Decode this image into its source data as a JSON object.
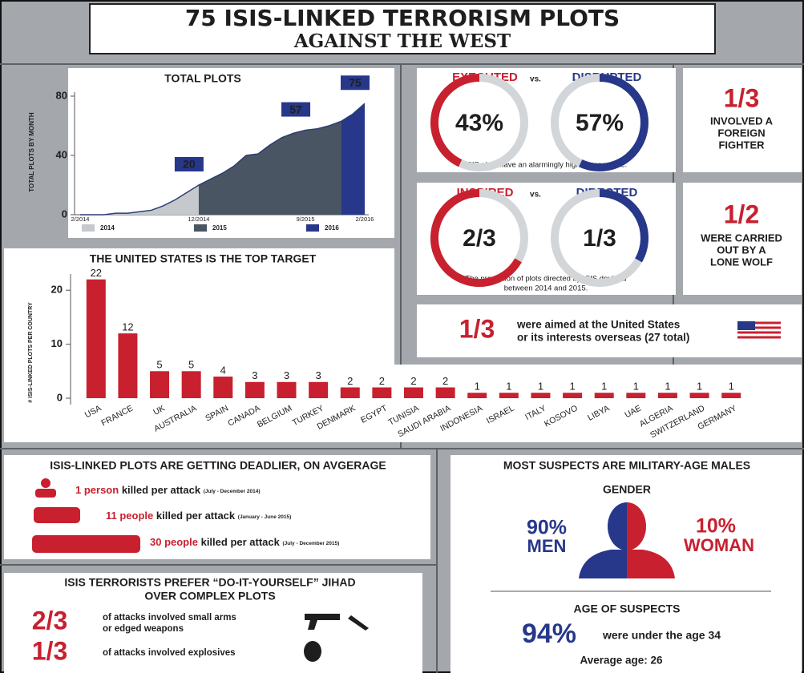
{
  "header": {
    "title_line1": "75 ISIS-LINKED TERRORISM PLOTS",
    "title_line2": "AGAINST THE WEST"
  },
  "chart_data": [
    {
      "type": "area",
      "title": "TOTAL PLOTS",
      "y_label": "TOTAL PLOTS BY MONTH",
      "categories": [
        "2/2014",
        null,
        null,
        null,
        null,
        null,
        null,
        null,
        null,
        null,
        "12/2014",
        null,
        null,
        null,
        null,
        null,
        null,
        null,
        null,
        "9/2015",
        null,
        null,
        null,
        null,
        "2/2016"
      ],
      "series": [
        {
          "name": "2014",
          "color": "#c5c9cd",
          "values": [
            0,
            0,
            0,
            1,
            1,
            2,
            3,
            6,
            10,
            15,
            20,
            null,
            null,
            null,
            null,
            null,
            null,
            null,
            null,
            null,
            null,
            null,
            null,
            null,
            null
          ]
        },
        {
          "name": "2015",
          "color": "#4a5563",
          "values": [
            null,
            null,
            null,
            null,
            null,
            null,
            null,
            null,
            null,
            null,
            20,
            24,
            28,
            33,
            40,
            41,
            47,
            52,
            55,
            57,
            58,
            60,
            63,
            null,
            null
          ]
        },
        {
          "name": "2016",
          "color": "#27378a",
          "values": [
            null,
            null,
            null,
            null,
            null,
            null,
            null,
            null,
            null,
            null,
            null,
            null,
            null,
            null,
            null,
            null,
            null,
            null,
            null,
            null,
            null,
            null,
            63,
            68,
            75
          ]
        }
      ],
      "annotations": [
        {
          "x": "12/2014",
          "value": 20
        },
        {
          "x": "9/2015",
          "value": 57
        },
        {
          "x": "2/2016",
          "value": 75
        }
      ],
      "ylim": [
        0,
        80
      ],
      "yticks": [
        0,
        40,
        80
      ]
    },
    {
      "type": "bar",
      "title": "THE UNITED STATES IS THE TOP TARGET",
      "y_label": "# ISIS-LINKED PLOTS PER COUNTRY",
      "categories": [
        "USA",
        "FRANCE",
        "UK",
        "AUSTRALIA",
        "SPAIN",
        "CANADA",
        "BELGIUM",
        "TURKEY",
        "DENMARK",
        "EGYPT",
        "TUNISIA",
        "SAUDI ARABIA",
        "INDONESIA",
        "ISRAEL",
        "ITALY",
        "KOSOVO",
        "LIBYA",
        "UAE",
        "ALGERIA",
        "SWITZERLAND",
        "GERMANY"
      ],
      "values": [
        22,
        12,
        5,
        5,
        4,
        3,
        3,
        3,
        2,
        2,
        2,
        2,
        1,
        1,
        1,
        1,
        1,
        1,
        1,
        1,
        1
      ],
      "color": "#c8202f",
      "ylim": [
        0,
        23
      ],
      "yticks": [
        0,
        10,
        20
      ]
    },
    {
      "type": "donut",
      "categories": [
        "EXECUTED",
        "DISRUPTED"
      ],
      "vs": "vs.",
      "values": [
        43,
        57
      ],
      "value_labels": [
        "43%",
        "57%"
      ],
      "colors": [
        "#c8202f",
        "#27378a"
      ],
      "track_color": "#d3d6d9",
      "caption": "ISIS plots have an alarmingly high success rate."
    },
    {
      "type": "donut",
      "categories": [
        "INSPIRED",
        "DIRECTED"
      ],
      "vs": "vs.",
      "values": [
        66.7,
        33.3
      ],
      "value_labels": [
        "2/3",
        "1/3"
      ],
      "colors": [
        "#c8202f",
        "#27378a"
      ],
      "track_color": "#d3d6d9",
      "caption_line1": "The proportion of plots directed by ISIS doubled",
      "caption_line2": "between 2014 and 2015."
    }
  ],
  "facts": [
    {
      "big": "1/3",
      "lines": [
        "INVOLVED A",
        "FOREIGN",
        "FIGHTER"
      ]
    },
    {
      "big": "1/2",
      "lines": [
        "WERE CARRIED",
        "OUT BY A",
        "LONE WOLF"
      ]
    },
    {
      "big": "1/3",
      "lines": [
        "were aimed at the United States",
        "or its interests overseas (27 total)"
      ]
    }
  ],
  "deadlier": {
    "title": "ISIS-LINKED PLOTS ARE GETTING DEADLIER, ON AVGERAGE",
    "rows": [
      {
        "count": "1 person",
        "text": "killed per attack",
        "period": "(July - December 2014)"
      },
      {
        "count": "11 people",
        "text": "killed per attack",
        "period": "(January - June 2015)"
      },
      {
        "count": "30 people",
        "text": "killed per attack",
        "period": "(July - December 2015)"
      }
    ]
  },
  "diy": {
    "title_line1": "ISIS TERRORISTS PREFER “DO-IT-YOURSELF” JIHAD",
    "title_line2": "OVER COMPLEX PLOTS",
    "rows": [
      {
        "big": "2/3",
        "lines": [
          "of attacks involved small arms",
          "or edged weapons"
        ]
      },
      {
        "big": "1/3",
        "lines": [
          "of attacks involved explosives"
        ]
      }
    ]
  },
  "suspects": {
    "title": "MOST SUSPECTS ARE MILITARY-AGE MALES",
    "gender_title": "GENDER",
    "men_pct": "90%",
    "men": "MEN",
    "women_pct": "10%",
    "women": "WOMAN",
    "age_title": "AGE OF SUSPECTS",
    "age_pct": "94%",
    "age_text": "were under the age 34",
    "average": "Average age: 26"
  }
}
